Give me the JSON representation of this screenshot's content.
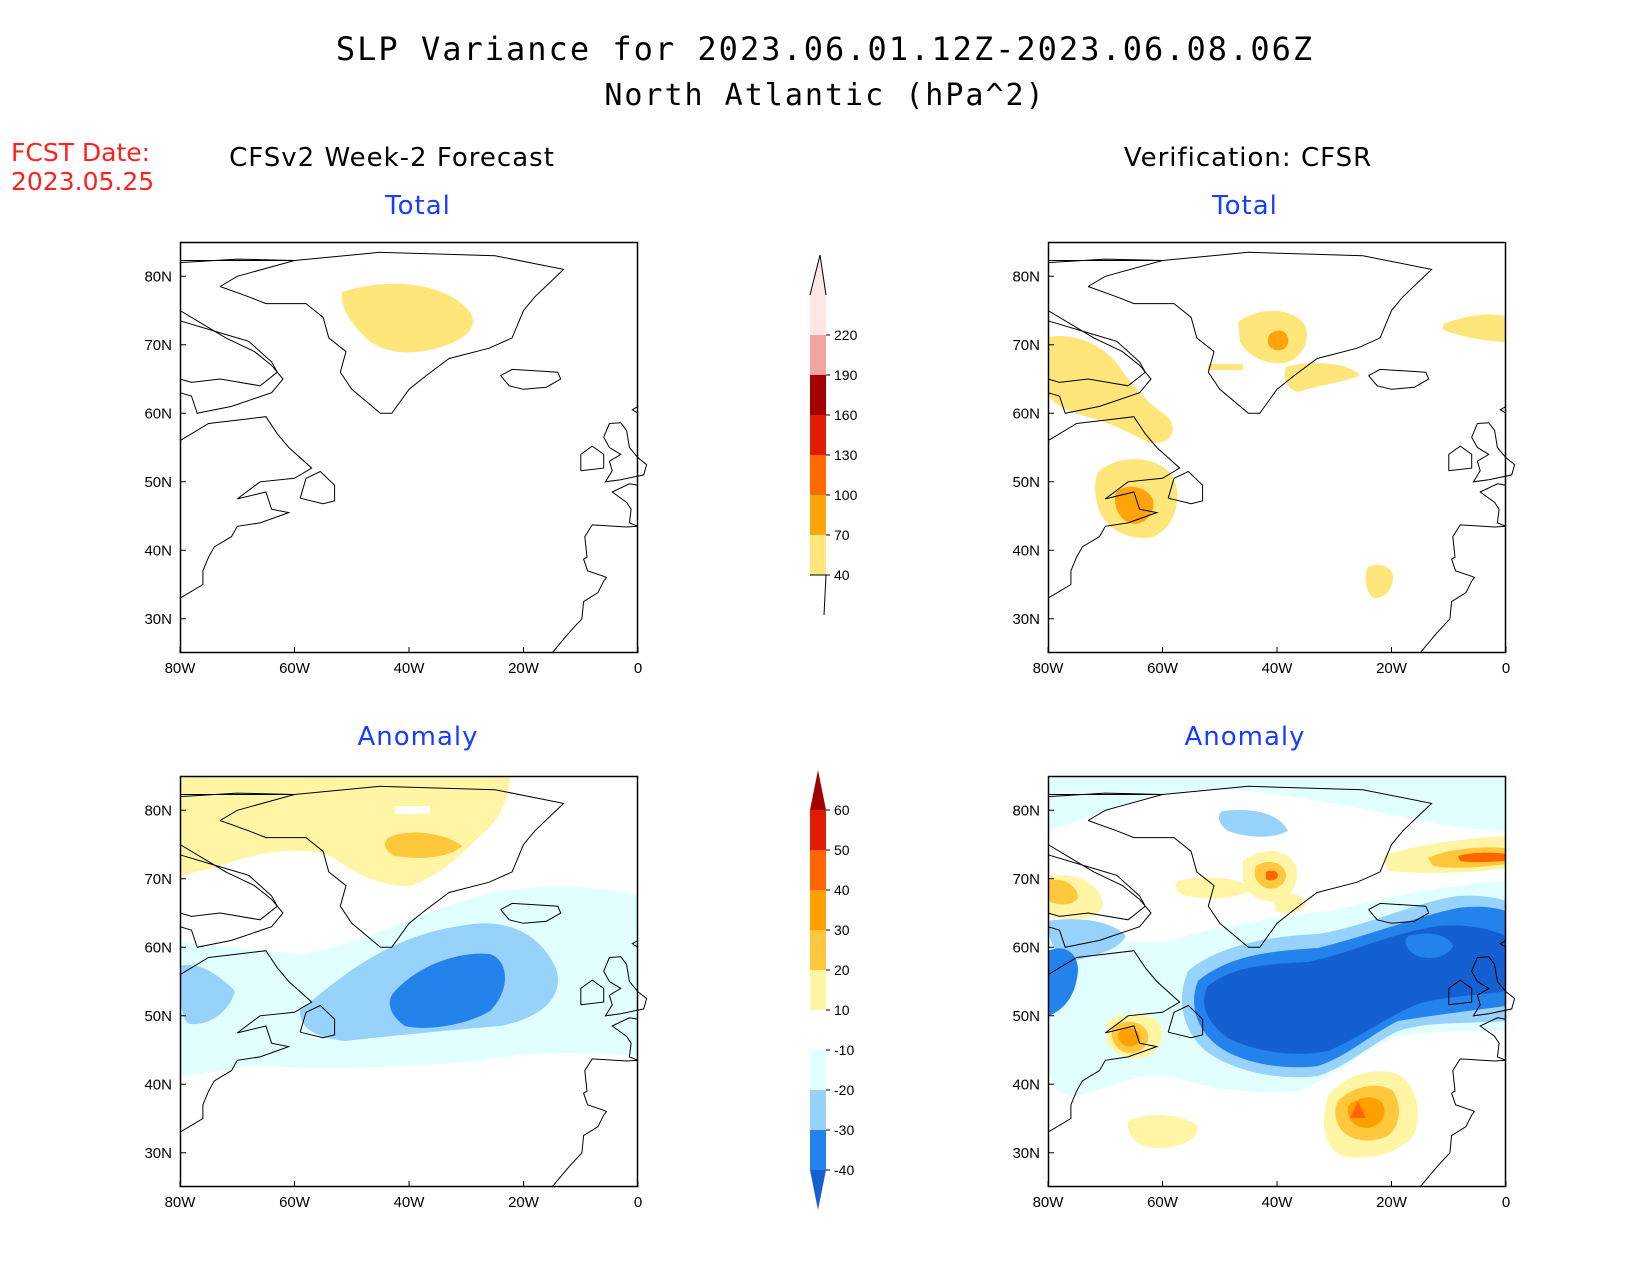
{
  "title": {
    "line1": "SLP Variance for 2023.06.01.12Z-2023.06.08.06Z",
    "line2": "North Atlantic (hPa^2)"
  },
  "fcst_date": {
    "label": "FCST Date:",
    "value": "2023.05.25"
  },
  "columns": {
    "left": "CFSv2 Week-2 Forecast",
    "right": "Verification: CFSR"
  },
  "panels": [
    {
      "label": "Total"
    },
    {
      "label": "Total"
    },
    {
      "label": "Anomaly"
    },
    {
      "label": "Anomaly"
    }
  ],
  "axes": {
    "lon_ticks": [
      "80W",
      "60W",
      "40W",
      "20W",
      "0"
    ],
    "lat_ticks": [
      "80N",
      "70N",
      "60N",
      "50N",
      "40N",
      "30N"
    ],
    "lon_range": [
      -80,
      0
    ],
    "lat_range": [
      25,
      85
    ]
  },
  "colorbars": {
    "total": {
      "levels": [
        "40",
        "70",
        "100",
        "130",
        "160",
        "190",
        "220"
      ],
      "colors": [
        "#ffe67a",
        "#ffa40a",
        "#ff6a00",
        "#e11b00",
        "#a50000",
        "#f4a3a3",
        "#fde6e6"
      ]
    },
    "anomaly": {
      "levels": [
        "-40",
        "-30",
        "-20",
        "-10",
        "10",
        "20",
        "30",
        "40",
        "50",
        "60"
      ],
      "colors": [
        "#1460d2",
        "#2382ec",
        "#96d2fa",
        "#e1ffff",
        "#ffffff",
        "#fff5a5",
        "#ffc83c",
        "#ffa000",
        "#ff6600",
        "#e11b00",
        "#a50000"
      ]
    }
  },
  "chart_data": [
    {
      "type": "heatmap",
      "title": "CFSv2 Week-2 Forecast - Total",
      "field": "SLP variance (hPa^2)",
      "features": [
        {
          "level_band": "40-70",
          "center_lon": -37,
          "center_lat": 75
        }
      ]
    },
    {
      "type": "heatmap",
      "title": "Verification: CFSR - Total",
      "field": "SLP variance (hPa^2)",
      "features": [
        {
          "level_band": "40-70",
          "center_lon": -75,
          "center_lat": 64
        },
        {
          "level_band": "70-100",
          "center_lon": -64,
          "center_lat": 47
        },
        {
          "level_band": "70-100",
          "center_lon": -39,
          "center_lat": 70
        },
        {
          "level_band": "40-70",
          "center_lon": -22,
          "center_lat": 37
        },
        {
          "level_band": "40-70",
          "center_lon": -5,
          "center_lat": 72
        }
      ]
    },
    {
      "type": "heatmap",
      "title": "CFSv2 Week-2 Forecast - Anomaly",
      "field": "SLP variance anomaly (hPa^2)",
      "features": [
        {
          "level_band": "10-20",
          "center_lon": -50,
          "center_lat": 77
        },
        {
          "level_band": "20-30",
          "center_lon": -38,
          "center_lat": 75
        },
        {
          "level_band": "-30 to -40",
          "center_lon": -32,
          "center_lat": 55
        },
        {
          "level_band": "-10 to -20",
          "center_lon": -40,
          "center_lat": 50
        }
      ]
    },
    {
      "type": "heatmap",
      "title": "Verification: CFSR - Anomaly",
      "field": "SLP variance anomaly (hPa^2)",
      "features": [
        {
          "level_band": "-40 and below",
          "center_lon": -37,
          "center_lat": 52
        },
        {
          "level_band": "30-40",
          "center_lon": -64,
          "center_lat": 46
        },
        {
          "level_band": "40-50",
          "center_lon": -22,
          "center_lat": 36
        },
        {
          "level_band": "30-40",
          "center_lon": -39,
          "center_lat": 70
        },
        {
          "level_band": "30-40",
          "center_lon": -3,
          "center_lat": 72
        }
      ]
    }
  ]
}
